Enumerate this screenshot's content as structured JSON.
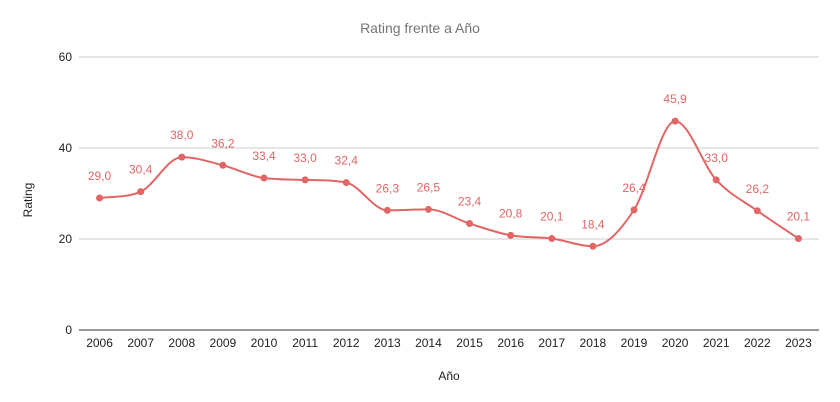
{
  "chart_data": {
    "type": "line",
    "title": "Rating frente a Año",
    "xlabel": "Año",
    "ylabel": "Rating",
    "x": [
      "2006",
      "2007",
      "2008",
      "2009",
      "2010",
      "2011",
      "2012",
      "2013",
      "2014",
      "2015",
      "2016",
      "2017",
      "2018",
      "2019",
      "2020",
      "2021",
      "2022",
      "2023"
    ],
    "series": [
      {
        "values": [
          29.0,
          30.4,
          38.0,
          36.2,
          33.4,
          33.0,
          32.4,
          26.3,
          26.5,
          23.4,
          20.8,
          20.1,
          18.4,
          26.4,
          45.9,
          33.0,
          26.2,
          20.1
        ],
        "labels": [
          "29,0",
          "30,4",
          "38,0",
          "36,2",
          "33,4",
          "33,0",
          "32,4",
          "26,3",
          "26,5",
          "23,4",
          "20,8",
          "20,1",
          "18,4",
          "26,4",
          "45,9",
          "33,0",
          "26,2",
          "20,1"
        ],
        "color": "#e06666"
      }
    ],
    "ylim": [
      0,
      60
    ],
    "yticks": [
      0,
      20,
      40,
      60
    ],
    "ytick_labels": [
      "0",
      "20",
      "40",
      "60"
    ],
    "grid": true,
    "smooth": true,
    "legend": "none"
  }
}
